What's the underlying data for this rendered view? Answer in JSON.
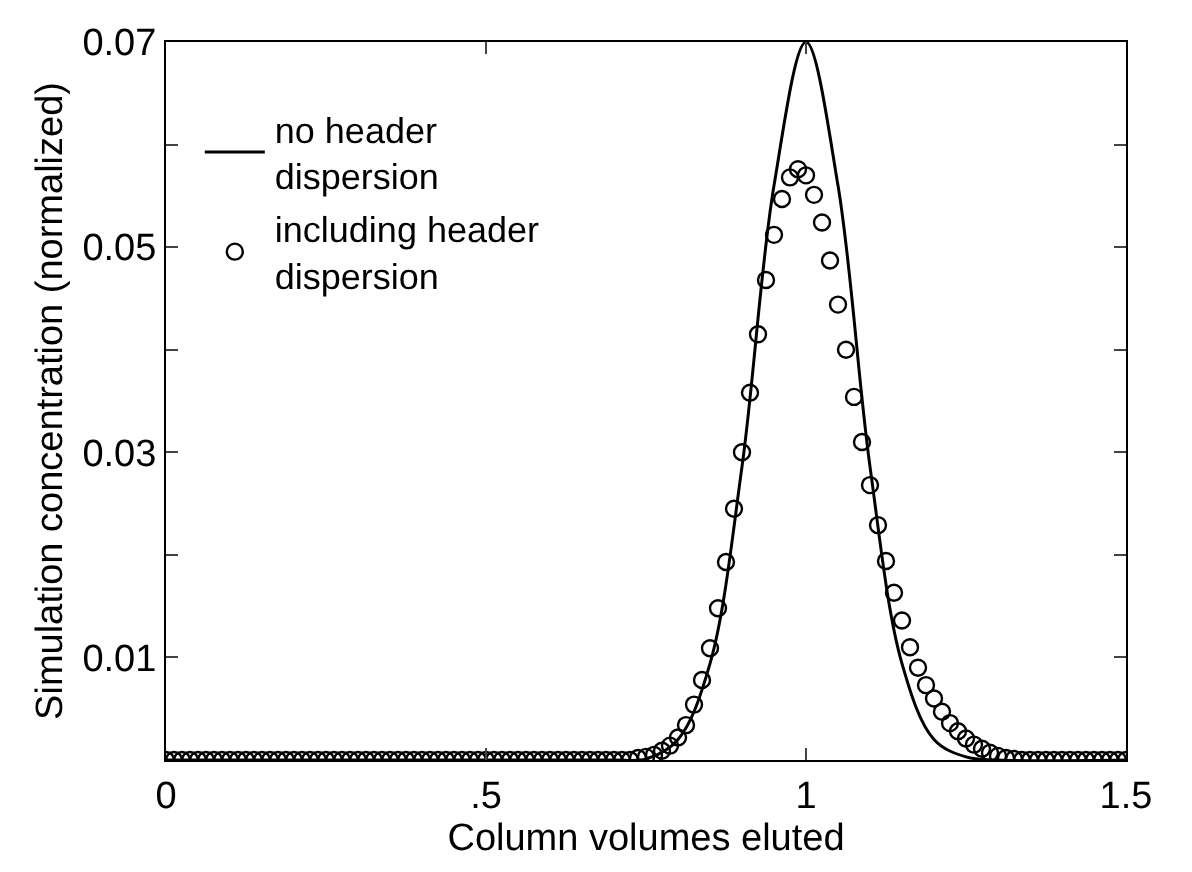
{
  "chart_data": {
    "type": "line",
    "xlabel": "Column volumes eluted",
    "ylabel": "Simulation concentration (normalized)",
    "xlim": [
      0,
      1.5
    ],
    "xticks": [
      0,
      {
        "value": 0.5,
        "label": ".5"
      },
      1,
      1.5
    ],
    "ylim": [
      0,
      0.07
    ],
    "yticks": [
      0.01,
      {
        "value": 0.02,
        "label": null
      },
      0.03,
      {
        "value": 0.04,
        "label": null
      },
      0.05,
      {
        "value": 0.06,
        "label": null
      },
      0.07
    ],
    "legend": "top left",
    "series": [
      {
        "name": "no header dispersion",
        "color": "#000000",
        "marker": "none",
        "line_style": "solid",
        "x": [
          0,
          0.6,
          0.7,
          0.75,
          0.8,
          0.85,
          0.9,
          0.95,
          1.0,
          1.05,
          1.1,
          1.15,
          1.2,
          1.25,
          1.3,
          1.5
        ],
        "values": [
          0,
          0,
          0,
          0.0001,
          0.002,
          0.0094,
          0.0286,
          0.056,
          0.07,
          0.056,
          0.0286,
          0.0094,
          0.002,
          0.0003,
          0,
          0
        ]
      },
      {
        "name": "including header dispersion",
        "color": "#000000",
        "type": "scatter",
        "marker": "circle",
        "x": [
          0,
          0.0125,
          0.025,
          0.0375,
          0.05,
          0.0625,
          0.075,
          0.0875,
          0.1,
          0.1125,
          0.125,
          0.1375,
          0.15,
          0.1625,
          0.175,
          0.1875,
          0.2,
          0.2125,
          0.225,
          0.2375,
          0.25,
          0.2625,
          0.275,
          0.2875,
          0.3,
          0.3125,
          0.325,
          0.3375,
          0.35,
          0.3625,
          0.375,
          0.3875,
          0.4,
          0.4125,
          0.425,
          0.4375,
          0.45,
          0.4625,
          0.475,
          0.4875,
          0.5,
          0.5125,
          0.525,
          0.5375,
          0.55,
          0.5625,
          0.575,
          0.5875,
          0.6,
          0.6125,
          0.625,
          0.6375,
          0.65,
          0.6625,
          0.675,
          0.6875,
          0.7,
          0.7125,
          0.725,
          0.7375,
          0.75,
          0.7625,
          0.775,
          0.7875,
          0.8,
          0.8125,
          0.825,
          0.8375,
          0.85,
          0.8625,
          0.875,
          0.8875,
          0.9,
          0.9125,
          0.925,
          0.9375,
          0.95,
          0.9625,
          0.975,
          0.9875,
          1.0,
          1.0125,
          1.025,
          1.0375,
          1.05,
          1.0625,
          1.075,
          1.0875,
          1.1,
          1.1125,
          1.125,
          1.1375,
          1.15,
          1.1625,
          1.175,
          1.1875,
          1.2,
          1.2125,
          1.225,
          1.2375,
          1.25,
          1.2625,
          1.275,
          1.2875,
          1.3,
          1.3125,
          1.325,
          1.3375,
          1.35,
          1.3625,
          1.375,
          1.3875,
          1.4,
          1.4125,
          1.425,
          1.4375,
          1.45,
          1.4625,
          1.475,
          1.4875,
          1.5
        ],
        "values": [
          0,
          0,
          0,
          0,
          0,
          0,
          0,
          0,
          0,
          0,
          0,
          0,
          0,
          0,
          0,
          0,
          0,
          0,
          0,
          0,
          0,
          0,
          0,
          0,
          0,
          0,
          0,
          0,
          0,
          0,
          0,
          0,
          0,
          0,
          0,
          0,
          0,
          0,
          0,
          0,
          0,
          0,
          0,
          0,
          0,
          0,
          0,
          0,
          0,
          0,
          0,
          0,
          0,
          0,
          0,
          0,
          0,
          0,
          0,
          0.0002,
          0.0003,
          0.0005,
          0.0009,
          0.0014,
          0.0022,
          0.0034,
          0.0054,
          0.0078,
          0.0109,
          0.0148,
          0.0193,
          0.0245,
          0.03,
          0.0358,
          0.0415,
          0.0468,
          0.0512,
          0.0547,
          0.0568,
          0.0576,
          0.057,
          0.0551,
          0.0524,
          0.0487,
          0.0444,
          0.04,
          0.0354,
          0.031,
          0.0268,
          0.0229,
          0.0194,
          0.0163,
          0.0136,
          0.011,
          0.009,
          0.0073,
          0.006,
          0.0047,
          0.0036,
          0.0028,
          0.0021,
          0.0015,
          0.0011,
          0.0007,
          0.0004,
          0.0002,
          0.0001,
          0,
          0,
          0,
          0,
          0,
          0,
          0,
          0,
          0,
          0,
          0,
          0,
          0,
          0
        ]
      }
    ]
  }
}
